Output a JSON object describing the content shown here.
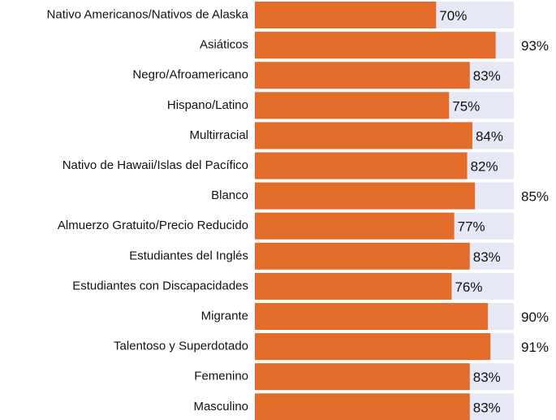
{
  "chart_data": {
    "type": "bar",
    "orientation": "horizontal",
    "categories": [
      "Nativo Americanos/Nativos de Alaska",
      "Asiáticos",
      "Negro/Afroamericano",
      "Hispano/Latino",
      "Multirracial",
      "Nativo de Hawaii/Islas del Pacífico",
      "Blanco",
      "Almuerzo Gratuito/Precio Reducido",
      "Estudiantes del Inglés",
      "Estudiantes con Discapacidades",
      "Migrante",
      "Talentoso y Superdotado",
      "Femenino",
      "Masculino"
    ],
    "values": [
      70,
      93,
      83,
      75,
      84,
      82,
      85,
      77,
      83,
      76,
      90,
      91,
      83,
      83
    ],
    "value_labels": [
      "70%",
      "93%",
      "83%",
      "75%",
      "84%",
      "82%",
      "85%",
      "77%",
      "83%",
      "76%",
      "90%",
      "91%",
      "83%",
      "83%"
    ],
    "color": "#e46c2a",
    "background_color": "#e6e8f5",
    "xlim": [
      0,
      100
    ]
  }
}
